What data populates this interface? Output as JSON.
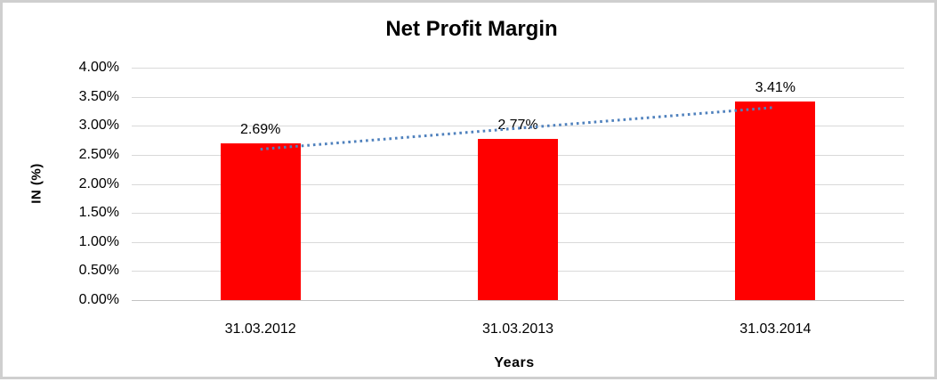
{
  "window": {
    "background_color": "#ffffff",
    "frame_border_color": "#cfcfcf"
  },
  "chart_data": {
    "type": "bar",
    "title": "Net Profit Margin",
    "xlabel": "Years",
    "ylabel": "IN (%)",
    "categories": [
      "31.03.2012",
      "31.03.2013",
      "31.03.2014"
    ],
    "values": [
      2.69,
      2.77,
      3.41
    ],
    "data_labels": [
      "2.69%",
      "2.77%",
      "3.41%"
    ],
    "yticks": [
      "0.00%",
      "0.50%",
      "1.00%",
      "1.50%",
      "2.00%",
      "2.50%",
      "3.00%",
      "3.50%",
      "4.00%"
    ],
    "ylim": [
      0,
      4
    ],
    "grid": true,
    "legend_position": "none",
    "bar_color": "#ff0000",
    "gridline_color": "#d9d9d9",
    "axis_line_color": "#c3c3c3",
    "text_color": "#000000",
    "trendline": {
      "type": "linear",
      "style": "dotted",
      "color": "#4f81bd",
      "series": "Net Profit Margin"
    }
  }
}
